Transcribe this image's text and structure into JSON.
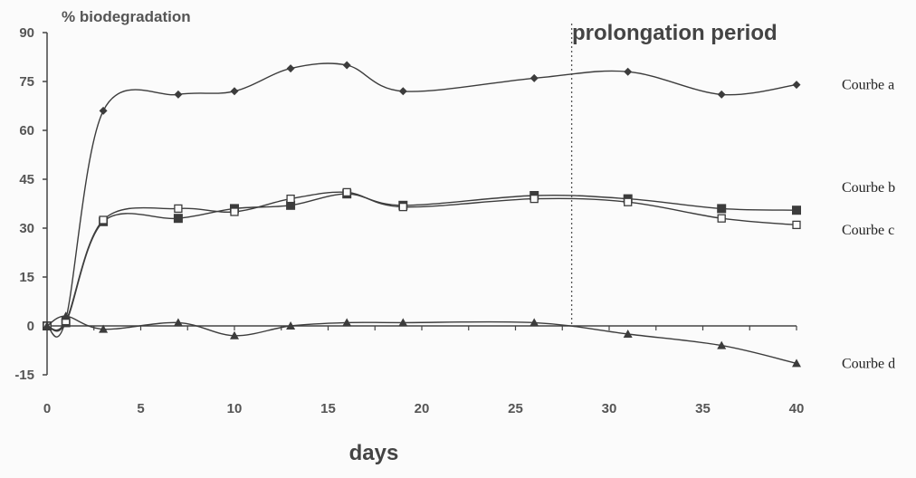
{
  "chart_data": {
    "type": "line",
    "ylabel": "% biodegradation",
    "xlabel": "days",
    "annotation": {
      "text": "prolongation period",
      "x": 28
    },
    "xlim": [
      0,
      40
    ],
    "ylim": [
      -15,
      90
    ],
    "xticks": [
      0,
      5,
      10,
      15,
      20,
      25,
      30,
      35,
      40
    ],
    "yticks": [
      90,
      75,
      60,
      45,
      30,
      15,
      0,
      -15
    ],
    "grid": false,
    "legend_placement": "right",
    "series": [
      {
        "name": "Courbe a",
        "marker": "diamond",
        "x": [
          0,
          1,
          3,
          7,
          10,
          13,
          16,
          19,
          26,
          31,
          36,
          40
        ],
        "y": [
          0,
          2,
          66,
          71,
          72,
          79,
          80,
          72,
          76,
          78,
          71,
          74
        ]
      },
      {
        "name": "Courbe b",
        "marker": "filled-square",
        "x": [
          0,
          1,
          3,
          7,
          10,
          13,
          16,
          19,
          26,
          31,
          36,
          40
        ],
        "y": [
          0,
          1,
          32,
          33,
          36,
          37,
          40.5,
          37,
          40,
          39,
          36,
          35.5
        ]
      },
      {
        "name": "Courbe c",
        "marker": "open-square",
        "x": [
          0,
          1,
          3,
          7,
          10,
          13,
          16,
          19,
          26,
          31,
          36,
          40
        ],
        "y": [
          0,
          1.5,
          32.5,
          36,
          35,
          39,
          41,
          36.5,
          39,
          38,
          33,
          31
        ]
      },
      {
        "name": "Courbe d",
        "marker": "triangle",
        "x": [
          0,
          1,
          3,
          7,
          10,
          13,
          16,
          19,
          26,
          31,
          36,
          40
        ],
        "y": [
          0,
          3,
          -1,
          1,
          -3,
          0,
          1,
          1,
          1,
          -2.5,
          -6,
          -11.5
        ]
      }
    ]
  }
}
